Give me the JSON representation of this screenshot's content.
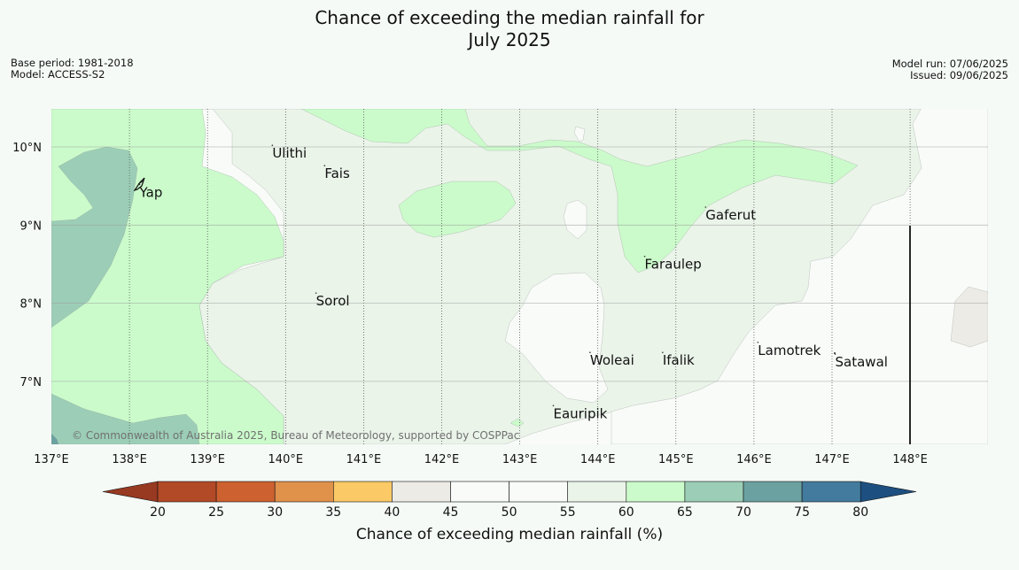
{
  "header": {
    "title_line1": "Chance of exceeding the median rainfall for",
    "title_line2": "July 2025",
    "base_period": "Base period: 1981-2018",
    "model": "Model: ACCESS-S2",
    "model_run": "Model run: 07/06/2025",
    "issued": "Issued: 09/06/2025"
  },
  "map": {
    "lon_range": [
      137,
      149
    ],
    "lat_range": [
      6.2,
      10.5
    ],
    "lon_ticks": [
      "137°E",
      "138°E",
      "139°E",
      "140°E",
      "141°E",
      "142°E",
      "143°E",
      "144°E",
      "145°E",
      "146°E",
      "147°E",
      "148°E"
    ],
    "lat_ticks": [
      "7°N",
      "8°N",
      "9°N",
      "10°N"
    ],
    "places": [
      {
        "name": "Ulithi",
        "lon": 139.83,
        "lat": 10.02
      },
      {
        "name": "Fais",
        "lon": 140.5,
        "lat": 9.76
      },
      {
        "name": "Yap",
        "lon": 138.13,
        "lat": 9.52
      },
      {
        "name": "Gaferut",
        "lon": 145.38,
        "lat": 9.23
      },
      {
        "name": "Faraulep",
        "lon": 144.6,
        "lat": 8.6
      },
      {
        "name": "Sorol",
        "lon": 140.39,
        "lat": 8.13
      },
      {
        "name": "Lamotrek",
        "lon": 146.05,
        "lat": 7.5
      },
      {
        "name": "Woleai",
        "lon": 143.9,
        "lat": 7.37
      },
      {
        "name": "Ifalik",
        "lon": 144.83,
        "lat": 7.37
      },
      {
        "name": "Satawal",
        "lon": 147.04,
        "lat": 7.35
      },
      {
        "name": "Eauripik",
        "lon": 143.43,
        "lat": 6.69
      }
    ],
    "copyright": "© Commonwealth of Australia 2025, Bureau of Meteorology, supported by COSPPac"
  },
  "legend": {
    "title": "Chance of exceeding median rainfall (%)",
    "ticks": [
      "20",
      "25",
      "30",
      "35",
      "40",
      "45",
      "50",
      "55",
      "60",
      "65",
      "70",
      "75",
      "80"
    ],
    "colors": [
      "#b34a27",
      "#cd6130",
      "#e0914a",
      "#fbc965",
      "#edebe5",
      "#f8fbf8",
      "#f8fbf8",
      "#eaf4e9",
      "#cbfbcb",
      "#9cceb7",
      "#6ba2a1",
      "#427b9d"
    ],
    "under_color": "#983921",
    "over_color": "#1d4f80"
  },
  "colors": {
    "background": "#f5faf7",
    "c40_45": "#edebe5",
    "c45_55": "#f8fbf8",
    "c55_60": "#eaf4e9",
    "c60_65": "#cbfbcb",
    "c65_70": "#9cceb7",
    "c70_75": "#6ba2a1"
  }
}
